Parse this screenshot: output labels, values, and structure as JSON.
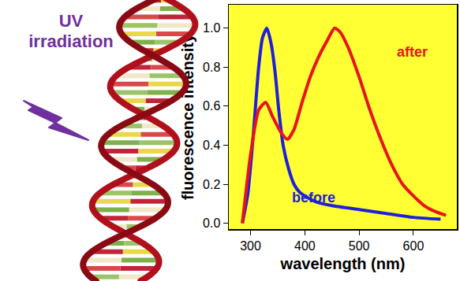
{
  "chart_data": {
    "type": "line",
    "x_label": "wavelength (nm)",
    "y_label": "fluorescence intensity",
    "annotations": [
      "UV irradiation"
    ],
    "xlim": [
      260,
      680
    ],
    "xticks": [
      300,
      400,
      500,
      600
    ],
    "ylim": [
      -0.03,
      1.12
    ],
    "yticks": [
      {
        "value": 0,
        "label": "0.0"
      },
      0.2,
      0.4,
      0.6,
      0.8,
      {
        "value": 1,
        "label": "1.0"
      }
    ],
    "grid": false,
    "series": [
      {
        "name": "before",
        "color": "#1f1fdc",
        "x": [
          285,
          295,
          305,
          315,
          322,
          330,
          338,
          345,
          352,
          360,
          370,
          380,
          390,
          400,
          420,
          450,
          500,
          550,
          600,
          650
        ],
        "values": [
          0,
          0.15,
          0.45,
          0.8,
          0.95,
          1.0,
          0.92,
          0.78,
          0.58,
          0.4,
          0.28,
          0.2,
          0.16,
          0.14,
          0.11,
          0.09,
          0.07,
          0.05,
          0.03,
          0.02
        ]
      },
      {
        "name": "after",
        "color": "#e8141c",
        "x": [
          285,
          300,
          315,
          328,
          340,
          355,
          368,
          380,
          395,
          410,
          425,
          440,
          455,
          465,
          480,
          500,
          520,
          540,
          560,
          580,
          600,
          620,
          640,
          660
        ],
        "values": [
          0,
          0.35,
          0.58,
          0.62,
          0.55,
          0.47,
          0.43,
          0.48,
          0.62,
          0.75,
          0.85,
          0.93,
          1.0,
          0.98,
          0.9,
          0.75,
          0.58,
          0.43,
          0.3,
          0.2,
          0.14,
          0.09,
          0.06,
          0.04
        ]
      }
    ]
  }
}
